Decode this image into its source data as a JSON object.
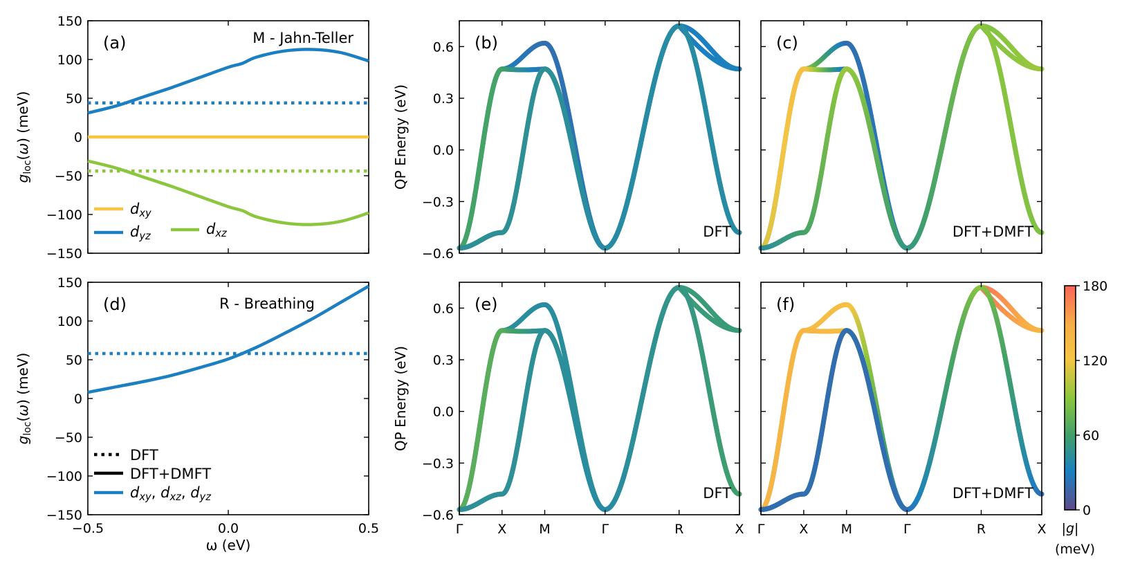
{
  "colors": {
    "dxy": "#f7c443",
    "dyz": "#1c7fc2",
    "dxz": "#8cc63e",
    "colormap": [
      "#5e4b8b",
      "#1b80c1",
      "#40a06a",
      "#8cc63e",
      "#f4c544",
      "#f8ad47",
      "#f96559"
    ]
  },
  "charts": {
    "a": {
      "type": "line",
      "panel_label": "(a)",
      "title": "M - Jahn-Teller",
      "ylabel": "g_loc(ω) (meV)",
      "xlim": [
        -0.5,
        0.5
      ],
      "ylim": [
        -150,
        150
      ],
      "yticks": [
        "150",
        "100",
        "50",
        "0",
        "−50",
        "−100",
        "−150"
      ],
      "series": [
        {
          "name": "d_xy",
          "style": "solid",
          "x": [
            -0.5,
            0.5
          ],
          "y": [
            0,
            0
          ]
        },
        {
          "name": "d_yz",
          "style": "solid",
          "x": [
            -0.5,
            -0.4,
            -0.3,
            -0.2,
            -0.1,
            0.0,
            0.05,
            0.1,
            0.2,
            0.3,
            0.4,
            0.5
          ],
          "y": [
            31,
            40,
            52,
            64,
            77,
            90,
            95,
            103,
            111,
            113,
            109,
            98
          ]
        },
        {
          "name": "d_xz",
          "style": "solid",
          "x": [
            -0.5,
            -0.4,
            -0.3,
            -0.2,
            -0.1,
            0.0,
            0.05,
            0.1,
            0.2,
            0.3,
            0.4,
            0.5
          ],
          "y": [
            -31,
            -40,
            -52,
            -64,
            -77,
            -90,
            -95,
            -103,
            -111,
            -113,
            -109,
            -98
          ]
        },
        {
          "name": "d_yz DFT",
          "style": "dotted",
          "x": [
            -0.5,
            0.5
          ],
          "y": [
            44,
            44
          ]
        },
        {
          "name": "d_xz DFT",
          "style": "dotted",
          "x": [
            -0.5,
            0.5
          ],
          "y": [
            -44,
            -44
          ]
        }
      ],
      "legend": {
        "dxy": "xy",
        "dyz": "yz",
        "dxz": "xz"
      }
    },
    "d": {
      "type": "line",
      "panel_label": "(d)",
      "title": "R - Breathing",
      "ylabel": "g_loc(ω) (meV)",
      "xlabel": "ω (eV)",
      "xlim": [
        -0.5,
        0.5
      ],
      "ylim": [
        -150,
        150
      ],
      "yticks": [
        "150",
        "100",
        "50",
        "0",
        "−50",
        "−100",
        "−150"
      ],
      "xticks": [
        "−0.5",
        "0.0",
        "0.5"
      ],
      "series": [
        {
          "name": "d_xy, d_xz, d_yz",
          "style": "solid",
          "x": [
            -0.5,
            -0.4,
            -0.3,
            -0.2,
            -0.1,
            0.0,
            0.1,
            0.2,
            0.3,
            0.4,
            0.5
          ],
          "y": [
            8,
            15,
            22,
            30,
            40,
            51,
            66,
            84,
            103,
            124,
            145
          ]
        },
        {
          "name": "DFT",
          "style": "dotted",
          "x": [
            -0.5,
            0.5
          ],
          "y": [
            58,
            58
          ]
        }
      ],
      "legend": {
        "dft": "DFT",
        "dmft": "DFT+DMFT",
        "all": ", "
      }
    },
    "bands_common": {
      "ylabel": "QP Energy (eV)",
      "ylim": [
        -0.6,
        0.75
      ],
      "yticks": [
        "0.6",
        "0.3",
        "0.0",
        "−0.3",
        "−0.6"
      ],
      "kpath": [
        "Γ",
        "X",
        "M",
        "Γ",
        "R",
        "X"
      ],
      "kpos": [
        0,
        1,
        2,
        3.414,
        5.146,
        6.56
      ]
    },
    "bands": [
      {
        "id": "b",
        "panel_label": "(b)",
        "method": "DFT",
        "g": [
          [
            38,
            30,
            20,
            24,
            28,
            32
          ],
          [
            62,
            62,
            20,
            24,
            28,
            32
          ],
          [
            48,
            80,
            80,
            45,
            40,
            48
          ],
          [
            45,
            45,
            45,
            40,
            40,
            40
          ]
        ]
      },
      {
        "id": "c",
        "panel_label": "(c)",
        "method": "DFT+DMFT",
        "g": [
          [
            38,
            95,
            20,
            28,
            85,
            95
          ],
          [
            110,
            130,
            20,
            28,
            85,
            95
          ],
          [
            48,
            102,
            140,
            50,
            90,
            85
          ],
          [
            42,
            60,
            95,
            50,
            90,
            85
          ]
        ]
      },
      {
        "id": "e",
        "panel_label": "(e)",
        "method": "DFT",
        "g": [
          [
            38,
            45,
            40,
            48,
            55,
            55
          ],
          [
            70,
            70,
            40,
            48,
            55,
            55
          ],
          [
            45,
            55,
            55,
            40,
            50,
            60
          ],
          [
            45,
            45,
            45,
            40,
            50,
            60
          ]
        ]
      },
      {
        "id": "f",
        "panel_label": "(f)",
        "method": "DFT+DMFT",
        "g": [
          [
            20,
            130,
            130,
            20,
            175,
            140
          ],
          [
            140,
            140,
            130,
            20,
            175,
            140
          ],
          [
            20,
            25,
            140,
            20,
            90,
            20
          ],
          [
            20,
            20,
            20,
            20,
            90,
            20
          ]
        ]
      }
    ],
    "colorbar": {
      "ticks": [
        "180",
        "120",
        "60",
        "0"
      ],
      "range": [
        0,
        180
      ],
      "label": "|g|",
      "unit": "(meV)"
    }
  }
}
